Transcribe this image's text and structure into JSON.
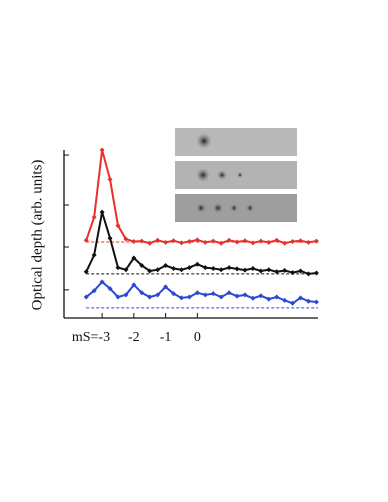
{
  "chart_data": {
    "type": "line",
    "ylabel": "Optical depth (arb. units)",
    "x": [
      -3.5,
      -3.25,
      -3,
      -2.75,
      -2.5,
      -2.25,
      -2,
      -1.75,
      -1.5,
      -1.25,
      -1,
      -0.75,
      -0.5,
      -0.25,
      0,
      0.25,
      0.5,
      0.75,
      1,
      1.25,
      1.5,
      1.75,
      2,
      2.25,
      2.5,
      2.75,
      3,
      3.25,
      3.5,
      3.75
    ],
    "xlim": [
      -4.2,
      3.8
    ],
    "xticks": [
      {
        "value": -3,
        "label": "mS=-3"
      },
      {
        "value": -2,
        "label": "-2"
      },
      {
        "value": -1,
        "label": "-1"
      },
      {
        "value": 0,
        "label": "0"
      }
    ],
    "ylim": [
      0,
      4
    ],
    "yticks": [
      0.67,
      1.69,
      2.69,
      3.88
    ],
    "series": [
      {
        "color": "#e8302a",
        "baseline": 1.81,
        "values": [
          1.85,
          2.4,
          4.0,
          3.3,
          2.2,
          1.88,
          1.82,
          1.83,
          1.78,
          1.85,
          1.8,
          1.84,
          1.79,
          1.82,
          1.86,
          1.8,
          1.83,
          1.78,
          1.85,
          1.81,
          1.84,
          1.79,
          1.83,
          1.8,
          1.85,
          1.78,
          1.82,
          1.84,
          1.8,
          1.83
        ]
      },
      {
        "color": "#111111",
        "baseline": 1.05,
        "values": [
          1.1,
          1.5,
          2.52,
          1.9,
          1.2,
          1.15,
          1.43,
          1.25,
          1.12,
          1.15,
          1.25,
          1.18,
          1.15,
          1.2,
          1.28,
          1.2,
          1.18,
          1.15,
          1.2,
          1.17,
          1.14,
          1.18,
          1.12,
          1.15,
          1.1,
          1.13,
          1.08,
          1.12,
          1.05,
          1.07
        ]
      },
      {
        "color": "#2b47d6",
        "baseline": 0.24,
        "values": [
          0.5,
          0.65,
          0.86,
          0.7,
          0.5,
          0.55,
          0.79,
          0.6,
          0.5,
          0.55,
          0.74,
          0.58,
          0.48,
          0.5,
          0.6,
          0.55,
          0.58,
          0.5,
          0.6,
          0.52,
          0.55,
          0.47,
          0.53,
          0.45,
          0.5,
          0.42,
          0.35,
          0.48,
          0.4,
          0.38
        ]
      }
    ]
  }
}
